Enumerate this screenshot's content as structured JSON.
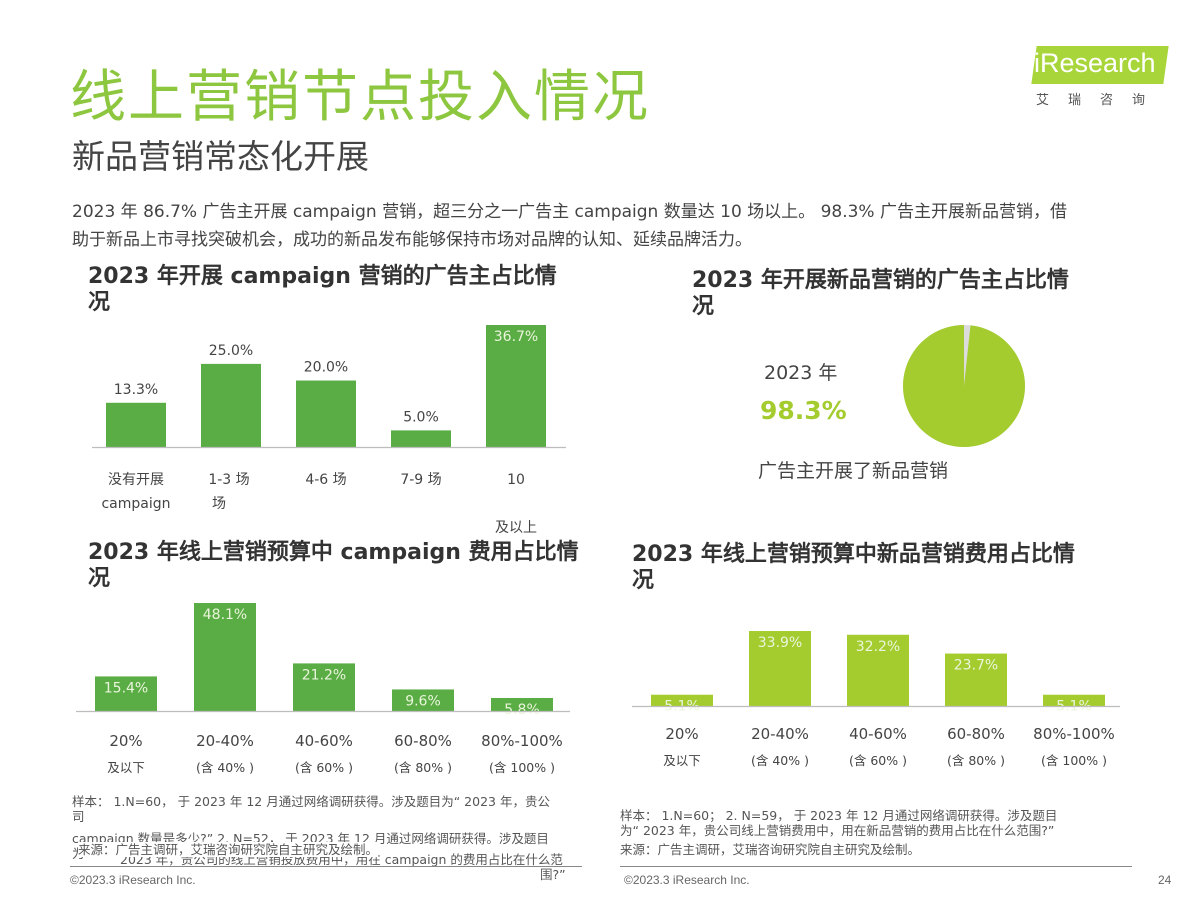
{
  "header": {
    "title": "线上营销节点投入情况",
    "subtitle": "新品营销常态化开展",
    "logo_text": "iResearch",
    "logo_sub": "艾瑞咨询"
  },
  "summary": {
    "line1": "2023 年 86.7% 广告主开展 campaign 营销，超三分之一广告主 campaign 数量达 10 场以上。 98.3% 广告主开展新品营销，借",
    "line2": "助于新品上市寻找突破机会，成功的新品发布能够保持市场对品牌的认知、延续品牌活力。"
  },
  "colors": {
    "dark_green": "#5aac44",
    "light_green": "#a4cc2f",
    "title_green": "#8dc63f"
  },
  "chart_data": [
    {
      "type": "bar",
      "title_line1": "2023 年开展 campaign 营销的广告主占比情",
      "title_line2": "况",
      "categories": [
        [
          "没有开展",
          "campaign"
        ],
        [
          "1-3 场",
          "场"
        ],
        [
          "4-6 场"
        ],
        [
          "7-9 场"
        ],
        [
          "10",
          "",
          "及以上"
        ]
      ],
      "values": [
        13.3,
        25.0,
        20.0,
        5.0,
        36.7
      ],
      "labels": [
        "13.3%",
        "25.0%",
        "20.0%",
        "5.0%",
        "36.7%"
      ],
      "ylim": [
        0,
        36.7
      ],
      "color": "#5aac44"
    },
    {
      "type": "pie",
      "title_line1": "2023 年开展新品营销的广告主占比情",
      "title_line2": "况",
      "year_label": "2023 年",
      "value": 98.3,
      "value_label": "98.3%",
      "caption": "广告主开展了新品营销",
      "color": "#a4cc2f"
    },
    {
      "type": "bar",
      "title_line1": "2023 年线上营销预算中 campaign 费用占比情",
      "title_line2": "况",
      "categories": [
        [
          "20%",
          "及以下"
        ],
        [
          "20-40%",
          "(含 40% )"
        ],
        [
          "40-60%",
          "(含 60% )"
        ],
        [
          "60-80%",
          "(含 80% )"
        ],
        [
          "80%-100%",
          "(含 100% )"
        ]
      ],
      "values": [
        15.4,
        48.1,
        21.2,
        9.6,
        5.8
      ],
      "labels": [
        "15.4%",
        "48.1%",
        "21.2%",
        "9.6%",
        "5.8%"
      ],
      "ylim": [
        0,
        48.1
      ],
      "color": "#5aac44"
    },
    {
      "type": "bar",
      "title_line1": "2023 年线上营销预算中新品营销费用占比情",
      "title_line2": "况",
      "categories": [
        [
          "20%",
          "及以下"
        ],
        [
          "20-40%",
          "(含 40% )"
        ],
        [
          "40-60%",
          "(含 60% )"
        ],
        [
          "60-80%",
          "(含 80% )"
        ],
        [
          "80%-100%",
          "(含 100% )"
        ]
      ],
      "values": [
        5.1,
        33.9,
        32.2,
        23.7,
        5.1
      ],
      "labels": [
        "5.1%",
        "33.9%",
        "32.2%",
        "23.7%",
        "5.1%"
      ],
      "ylim": [
        0,
        33.9
      ],
      "color": "#a4cc2f"
    }
  ],
  "notes": {
    "left_1": "样本： 1.N=60， 于 2023 年 12 月通过网络调研获得。涉及题目为“ 2023 年，贵公",
    "left_2": "司",
    "left_3": "campaign 数量是多少?” 2. N=52， 于 2023 年 12 月通过网络调研获得。涉及题目",
    "left_4": "为",
    "left_5": "2023 年，贵公司的线上营销投放费用中，用在 campaign 的费用占比在什么范",
    "left_6": "围?”",
    "left_source": "来源：广告主调研，艾瑞咨询研究院自主研究及绘制。",
    "right_1": "样本： 1.N=60； 2. N=59， 于 2023 年 12 月通过网络调研获得。涉及题目",
    "right_2": "为“ 2023 年，贵公司线上营销费用中，用在新品营销的费用占比在什么范围?”",
    "right_source": "来源：广告主调研，艾瑞咨询研究院自主研究及绘制。"
  },
  "footer": {
    "left_copyright": "©2023.3 iResearch Inc.",
    "right_copyright": "©2023.3 iResearch Inc.",
    "page_number": "24"
  }
}
